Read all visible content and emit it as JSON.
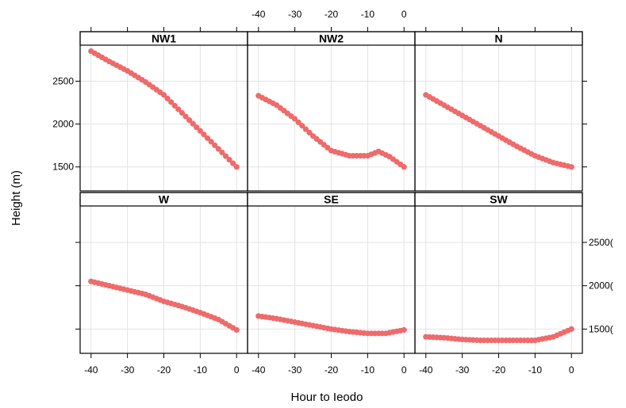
{
  "chart_data": {
    "type": "line",
    "xlabel": "Hour to Ieodo",
    "ylabel": "Height (m)",
    "xlim": [
      -43,
      3
    ],
    "ylim": [
      1220,
      2920
    ],
    "x_ticks": [
      -40,
      -30,
      -20,
      -10,
      0
    ],
    "x_tick_labels": [
      "-40",
      "-30",
      "-20",
      "-10",
      "0"
    ],
    "y_ticks": [
      1500,
      2000,
      2500
    ],
    "y_tick_labels": [
      "1500",
      "2000",
      "2500"
    ],
    "y_tick_labels_right": [
      "1500(",
      "2000(",
      "2500("
    ],
    "grid": true,
    "series_color": "#ee6b6b",
    "panels": [
      {
        "name": "NW1",
        "x": [
          -40,
          -35,
          -30,
          -25,
          -20,
          -15,
          -10,
          -5,
          0
        ],
        "y": [
          2850,
          2730,
          2620,
          2490,
          2340,
          2130,
          1920,
          1710,
          1500
        ]
      },
      {
        "name": "NW2",
        "x": [
          -40,
          -35,
          -30,
          -25,
          -20,
          -15,
          -10,
          -7,
          -4,
          0
        ],
        "y": [
          2330,
          2220,
          2060,
          1860,
          1690,
          1630,
          1630,
          1680,
          1620,
          1500
        ]
      },
      {
        "name": "N",
        "x": [
          -40,
          -35,
          -30,
          -25,
          -20,
          -15,
          -10,
          -5,
          0
        ],
        "y": [
          2340,
          2220,
          2100,
          1980,
          1860,
          1740,
          1630,
          1550,
          1500
        ]
      },
      {
        "name": "W",
        "x": [
          -40,
          -35,
          -30,
          -25,
          -20,
          -15,
          -10,
          -5,
          0
        ],
        "y": [
          2050,
          2000,
          1950,
          1900,
          1820,
          1760,
          1690,
          1610,
          1490
        ]
      },
      {
        "name": "SE",
        "x": [
          -40,
          -35,
          -30,
          -25,
          -20,
          -15,
          -10,
          -5,
          0
        ],
        "y": [
          1650,
          1620,
          1580,
          1540,
          1500,
          1470,
          1450,
          1450,
          1490
        ]
      },
      {
        "name": "SW",
        "x": [
          -40,
          -35,
          -30,
          -25,
          -20,
          -15,
          -10,
          -5,
          0
        ],
        "y": [
          1410,
          1400,
          1380,
          1370,
          1370,
          1370,
          1370,
          1410,
          1500
        ]
      }
    ]
  }
}
